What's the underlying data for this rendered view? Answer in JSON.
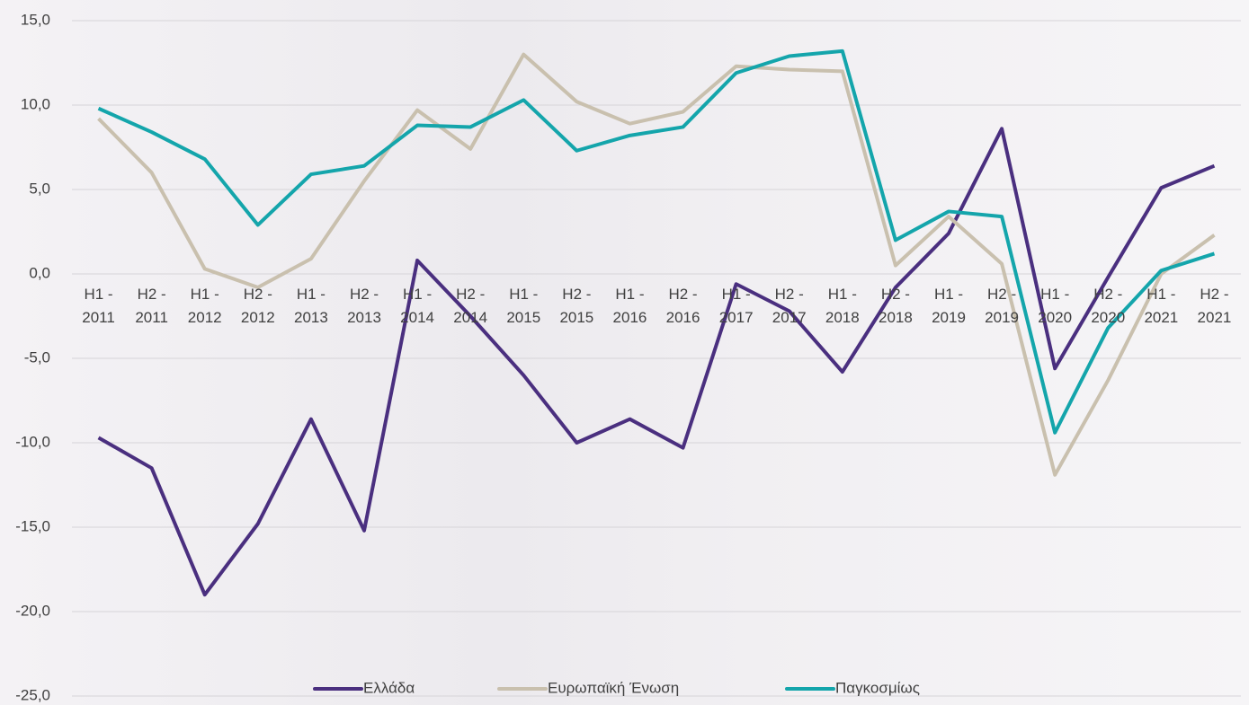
{
  "chart_data": {
    "type": "line",
    "categories": [
      "H1 - 2011",
      "H2 - 2011",
      "H1 - 2012",
      "H2 - 2012",
      "H1 - 2013",
      "H2 - 2013",
      "H1 - 2014",
      "H2 - 2014",
      "H1 - 2015",
      "H2 - 2015",
      "H1 - 2016",
      "H2 - 2016",
      "H1 - 2017",
      "H2 - 2017",
      "H1 - 2018",
      "H2 - 2018",
      "H1 - 2019",
      "H2 - 2019",
      "H1 - 2020",
      "H2 - 2020",
      "H1 - 2021",
      "H2 - 2021"
    ],
    "series": [
      {
        "name": "Ελλάδα",
        "color": "#4a2f7f",
        "values": [
          -9.7,
          -11.5,
          -19.0,
          -14.8,
          -8.6,
          -15.2,
          0.8,
          -2.5,
          -6.0,
          -10.0,
          -8.6,
          -10.3,
          -0.6,
          -2.2,
          -5.8,
          -0.8,
          2.4,
          8.6,
          -5.6,
          -0.2,
          5.1,
          6.4
        ]
      },
      {
        "name": "Ευρωπαϊκή Ένωση",
        "color": "#c9c0ae",
        "values": [
          9.2,
          6.0,
          0.3,
          -0.8,
          0.9,
          5.5,
          9.7,
          7.4,
          13.0,
          10.2,
          8.9,
          9.6,
          12.3,
          12.1,
          12.0,
          0.5,
          3.4,
          0.6,
          -11.9,
          -6.3,
          0.0,
          2.3
        ]
      },
      {
        "name": "Παγκοσμίως",
        "color": "#14a5ab",
        "values": [
          9.8,
          8.4,
          6.8,
          2.9,
          5.9,
          6.4,
          8.8,
          8.7,
          10.3,
          7.3,
          8.2,
          8.7,
          11.9,
          12.9,
          13.2,
          2.0,
          3.7,
          3.4,
          -9.4,
          -3.2,
          0.2,
          1.2
        ]
      }
    ],
    "ylim": [
      -25,
      15
    ],
    "yticks": [
      {
        "value": -25,
        "label": "-25,0"
      },
      {
        "value": -20,
        "label": "-20,0"
      },
      {
        "value": -15,
        "label": "-15,0"
      },
      {
        "value": -10,
        "label": "-10,0"
      },
      {
        "value": -5,
        "label": "-5,0"
      },
      {
        "value": 0,
        "label": "0,0"
      },
      {
        "value": 5,
        "label": "5,0"
      },
      {
        "value": 10,
        "label": "10,0"
      },
      {
        "value": 15,
        "label": "15,0"
      }
    ],
    "grid": true,
    "legend": "bottom"
  }
}
